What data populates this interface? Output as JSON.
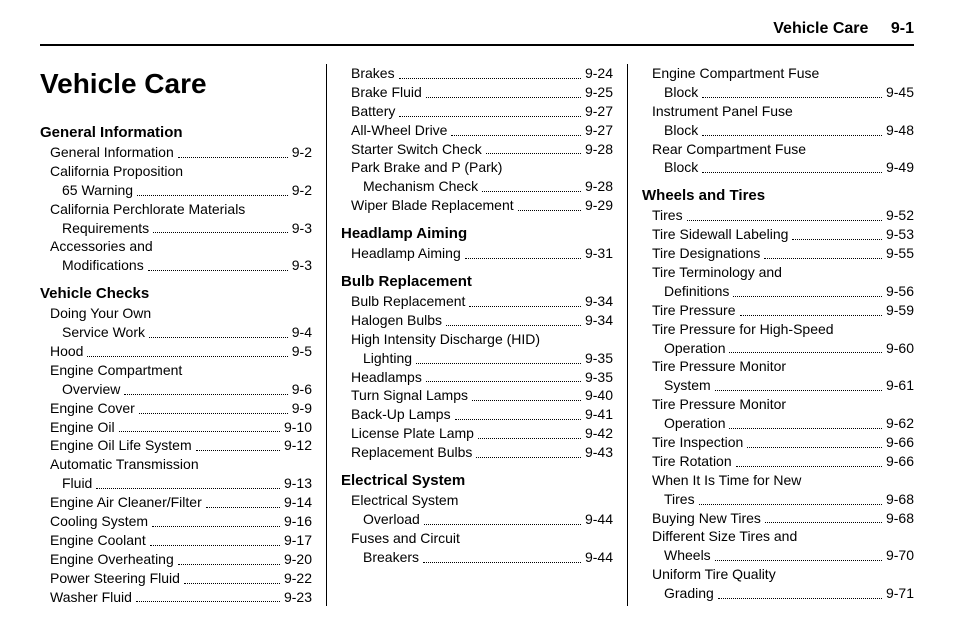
{
  "header": {
    "section": "Vehicle Care",
    "page": "9-1"
  },
  "title": "Vehicle Care",
  "columns": [
    {
      "blocks": [
        {
          "heading": "General Information",
          "items": [
            {
              "label": "General Information",
              "page": "9-2"
            },
            {
              "label1": "California Proposition",
              "label2": "65 Warning",
              "page": "9-2"
            },
            {
              "label1": "California Perchlorate Materials",
              "label2": "Requirements",
              "page": "9-3"
            },
            {
              "label1": "Accessories and",
              "label2": "Modifications",
              "page": "9-3"
            }
          ]
        },
        {
          "heading": "Vehicle Checks",
          "items": [
            {
              "label1": "Doing Your Own",
              "label2": "Service Work",
              "page": "9-4"
            },
            {
              "label": "Hood",
              "page": "9-5"
            },
            {
              "label1": "Engine Compartment",
              "label2": "Overview",
              "page": "9-6"
            },
            {
              "label": "Engine Cover",
              "page": "9-9"
            },
            {
              "label": "Engine Oil",
              "page": "9-10"
            },
            {
              "label": "Engine Oil Life System",
              "page": "9-12"
            },
            {
              "label1": "Automatic Transmission",
              "label2": "Fluid",
              "page": "9-13"
            },
            {
              "label": "Engine Air Cleaner/Filter",
              "page": "9-14"
            },
            {
              "label": "Cooling System",
              "page": "9-16"
            },
            {
              "label": "Engine Coolant",
              "page": "9-17"
            },
            {
              "label": "Engine Overheating",
              "page": "9-20"
            },
            {
              "label": "Power Steering Fluid",
              "page": "9-22"
            },
            {
              "label": "Washer Fluid",
              "page": "9-23"
            }
          ]
        }
      ]
    },
    {
      "blocks": [
        {
          "heading": null,
          "items": [
            {
              "label": "Brakes",
              "page": "9-24"
            },
            {
              "label": "Brake Fluid",
              "page": "9-25"
            },
            {
              "label": "Battery",
              "page": "9-27"
            },
            {
              "label": "All-Wheel Drive",
              "page": "9-27"
            },
            {
              "label": "Starter Switch Check",
              "page": "9-28"
            },
            {
              "label1": "Park Brake and P (Park)",
              "label2": "Mechanism Check",
              "page": "9-28"
            },
            {
              "label": "Wiper Blade Replacement",
              "page": "9-29"
            }
          ]
        },
        {
          "heading": "Headlamp Aiming",
          "items": [
            {
              "label": "Headlamp Aiming",
              "page": "9-31"
            }
          ]
        },
        {
          "heading": "Bulb Replacement",
          "items": [
            {
              "label": "Bulb Replacement",
              "page": "9-34"
            },
            {
              "label": "Halogen Bulbs",
              "page": "9-34"
            },
            {
              "label1": "High Intensity Discharge (HID)",
              "label2": "Lighting",
              "page": "9-35"
            },
            {
              "label": "Headlamps",
              "page": "9-35"
            },
            {
              "label": "Turn Signal Lamps",
              "page": "9-40"
            },
            {
              "label": "Back-Up Lamps",
              "page": "9-41"
            },
            {
              "label": "License Plate Lamp",
              "page": "9-42"
            },
            {
              "label": "Replacement Bulbs",
              "page": "9-43"
            }
          ]
        },
        {
          "heading": "Electrical System",
          "items": [
            {
              "label1": "Electrical System",
              "label2": "Overload",
              "page": "9-44"
            },
            {
              "label1": "Fuses and Circuit",
              "label2": "Breakers",
              "page": "9-44"
            }
          ]
        }
      ]
    },
    {
      "blocks": [
        {
          "heading": null,
          "items": [
            {
              "label1": "Engine Compartment Fuse",
              "label2": "Block",
              "page": "9-45"
            },
            {
              "label1": "Instrument Panel Fuse",
              "label2": "Block",
              "page": "9-48"
            },
            {
              "label1": "Rear Compartment Fuse",
              "label2": "Block",
              "page": "9-49"
            }
          ]
        },
        {
          "heading": "Wheels and Tires",
          "items": [
            {
              "label": "Tires",
              "page": "9-52"
            },
            {
              "label": "Tire Sidewall Labeling",
              "page": "9-53"
            },
            {
              "label": "Tire Designations",
              "page": "9-55"
            },
            {
              "label1": "Tire Terminology and",
              "label2": "Definitions",
              "page": "9-56"
            },
            {
              "label": "Tire Pressure",
              "page": "9-59"
            },
            {
              "label1": "Tire Pressure for High-Speed",
              "label2": "Operation",
              "page": "9-60"
            },
            {
              "label1": "Tire Pressure Monitor",
              "label2": "System",
              "page": "9-61"
            },
            {
              "label1": "Tire Pressure Monitor",
              "label2": "Operation",
              "page": "9-62"
            },
            {
              "label": "Tire Inspection",
              "page": "9-66"
            },
            {
              "label": "Tire Rotation",
              "page": "9-66"
            },
            {
              "label1": "When It Is Time for New",
              "label2": "Tires",
              "page": "9-68"
            },
            {
              "label": "Buying New Tires",
              "page": "9-68"
            },
            {
              "label1": "Different Size Tires and",
              "label2": "Wheels",
              "page": "9-70"
            },
            {
              "label1": "Uniform Tire Quality",
              "label2": "Grading",
              "page": "9-71"
            }
          ]
        }
      ]
    }
  ]
}
